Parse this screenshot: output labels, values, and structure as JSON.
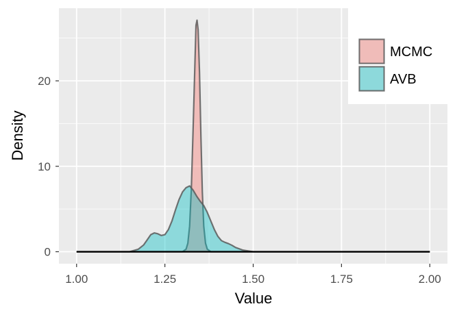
{
  "chart_data": {
    "type": "area",
    "xlabel": "Value",
    "ylabel": "Density",
    "xlim": [
      0.95,
      2.05
    ],
    "ylim": [
      -1.4,
      28.5
    ],
    "x_ticks": [
      1.0,
      1.25,
      1.5,
      1.75,
      2.0
    ],
    "x_tick_labels": [
      "1.00",
      "1.25",
      "1.50",
      "1.75",
      "2.00"
    ],
    "y_ticks": [
      0,
      10,
      20
    ],
    "y_tick_labels": [
      "0",
      "10",
      "20"
    ],
    "grid": true,
    "legend_position": "top-right",
    "series": [
      {
        "name": "MCMC",
        "color": "#f8766d",
        "points": [
          [
            1.0,
            0
          ],
          [
            1.3,
            0
          ],
          [
            1.31,
            0.3
          ],
          [
            1.315,
            1.0
          ],
          [
            1.32,
            3.0
          ],
          [
            1.325,
            7.5
          ],
          [
            1.33,
            14.5
          ],
          [
            1.335,
            22.0
          ],
          [
            1.338,
            26.5
          ],
          [
            1.341,
            27.1
          ],
          [
            1.344,
            26.0
          ],
          [
            1.348,
            21.0
          ],
          [
            1.352,
            13.5
          ],
          [
            1.356,
            7.0
          ],
          [
            1.36,
            3.0
          ],
          [
            1.365,
            1.0
          ],
          [
            1.37,
            0.3
          ],
          [
            1.38,
            0
          ],
          [
            2.0,
            0
          ]
        ]
      },
      {
        "name": "AVB",
        "color": "#00bfc4",
        "points": [
          [
            1.0,
            0
          ],
          [
            1.15,
            0
          ],
          [
            1.175,
            0.3
          ],
          [
            1.19,
            0.8
          ],
          [
            1.2,
            1.4
          ],
          [
            1.21,
            2.0
          ],
          [
            1.22,
            2.2
          ],
          [
            1.23,
            2.1
          ],
          [
            1.24,
            1.9
          ],
          [
            1.25,
            2.0
          ],
          [
            1.26,
            2.6
          ],
          [
            1.27,
            3.6
          ],
          [
            1.28,
            4.9
          ],
          [
            1.29,
            6.1
          ],
          [
            1.3,
            7.0
          ],
          [
            1.31,
            7.5
          ],
          [
            1.32,
            7.7
          ],
          [
            1.33,
            7.2
          ],
          [
            1.34,
            6.5
          ],
          [
            1.35,
            5.9
          ],
          [
            1.36,
            5.4
          ],
          [
            1.37,
            4.6
          ],
          [
            1.38,
            3.6
          ],
          [
            1.39,
            2.6
          ],
          [
            1.4,
            1.8
          ],
          [
            1.41,
            1.3
          ],
          [
            1.42,
            1.1
          ],
          [
            1.43,
            0.95
          ],
          [
            1.44,
            0.75
          ],
          [
            1.45,
            0.5
          ],
          [
            1.47,
            0.2
          ],
          [
            1.5,
            0
          ],
          [
            2.0,
            0
          ]
        ]
      }
    ],
    "reference_line": {
      "x": [
        1.0,
        2.0
      ],
      "y": 0,
      "color": "#000000"
    }
  }
}
